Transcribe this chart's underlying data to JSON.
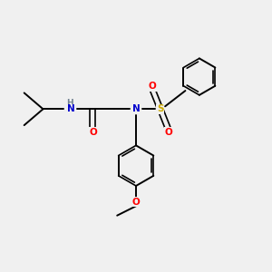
{
  "background_color": "#f0f0f0",
  "atom_colors": {
    "C": "#000000",
    "H": "#708090",
    "N": "#0000cd",
    "O": "#ff0000",
    "S": "#ccaa00"
  },
  "figsize": [
    3.0,
    3.0
  ],
  "dpi": 100
}
